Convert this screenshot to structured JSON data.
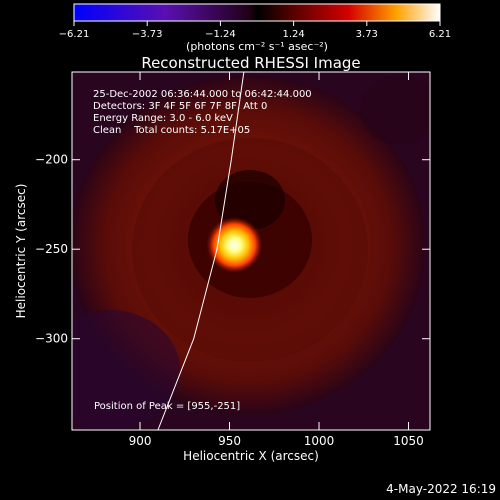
{
  "chart_data": {
    "type": "heatmap",
    "title": "Reconstructed RHESSI Image",
    "xlabel": "Heliocentric X (arcsec)",
    "ylabel": "Heliocentric Y (arcsec)",
    "xlim": [
      862,
      1062
    ],
    "ylim": [
      -351,
      -151
    ],
    "x_ticks": [
      900,
      950,
      1000,
      1050
    ],
    "y_ticks": [
      -200,
      -250,
      -300
    ],
    "colorbar": {
      "colormap": "black-red-orange-yellow-white with blue/purple for negative values",
      "range": [
        -6.21,
        6.21
      ],
      "ticks": [
        "-6.21",
        "-3.73",
        "-1.24",
        "1.24",
        "3.73",
        "6.21"
      ],
      "unit_label": "(photons cm⁻² s⁻¹ asec⁻²)"
    },
    "annotations": {
      "time_range": "25-Dec-2002 06:36:44.000 to 06:42:44.000",
      "detectors": "Detectors: 3F 4F 5F 6F 7F 8F, Att 0",
      "energy": "Energy Range: 3.0 - 6.0 keV",
      "clean_counts": "Clean    Total counts: 5.17E+05",
      "peak": "Position of Peak = [955,-251]"
    },
    "peak_position": [
      955,
      -251
    ],
    "peak_value": 6.21,
    "limb_curve": [
      [
        910,
        -351
      ],
      [
        930,
        -300
      ],
      [
        943,
        -250
      ],
      [
        951,
        -200
      ],
      [
        958,
        -151
      ]
    ],
    "footer_date": "4-May-2022 16:19"
  }
}
